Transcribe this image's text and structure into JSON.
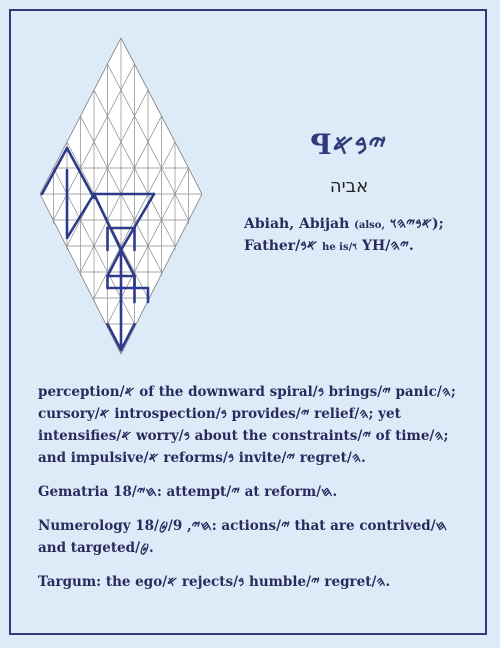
{
  "card": {
    "paleo_title": "ꟼ𐤉𐤁𐤀",
    "hebrew": "אביה",
    "names": "Abiah, Abijah",
    "names_also_label": "(also,",
    "names_also_value": "𐤀𐤁𐤉𐤄𐤅);",
    "father_line_a": "Father/𐤀𐤁",
    "father_he_is": "he is/𐤅",
    "father_line_b": "YH/𐤉𐤄."
  },
  "paragraphs": [
    "perception/𐤀 of the downward spiral/𐤁 brings/𐤉 panic/𐤄; cursory/𐤀 introspection/𐤁 provides/𐤉 relief/𐤄; yet intensifies/𐤀 worry/𐤁 about the constraints/𐤉 of time/𐤄; and impulsive/𐤀 reforms/𐤁 invite/𐤉 regret/𐤄.",
    "Gematria 18/𐤇𐤉: attempt/𐤉 at reform/𐤇.",
    "Numerology 18/𐤇𐤉, 9/𐤈: actions/𐤉 that are contrived/𐤇 and targeted/𐤈.",
    "Targum: the ego/𐤀 rejects/𐤁 humble/𐤉 regret/𐤄."
  ]
}
